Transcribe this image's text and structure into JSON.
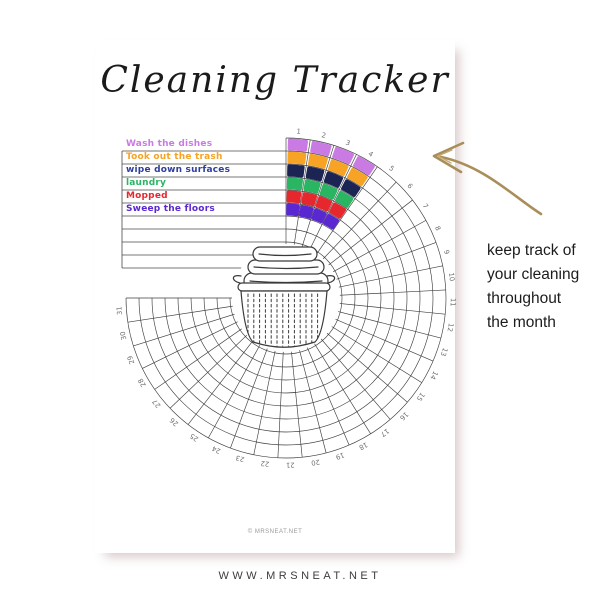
{
  "page": {
    "title": "Cleaning Tracker",
    "copyright": "© MRSNEAT.NET"
  },
  "caption": {
    "text": "keep track of\nyour cleaning\nthroughout\nthe month"
  },
  "footer": {
    "text": "WWW.MRSNEAT.NET"
  },
  "table": {
    "rows_total": 10,
    "tasks": [
      {
        "label": "Wash the dishes",
        "text_color": "#c97be3"
      },
      {
        "label": "Took out the trash",
        "text_color": "#f7a325"
      },
      {
        "label": "wipe down surfaces",
        "text_color": "#2f3e9e"
      },
      {
        "label": "laundry",
        "text_color": "#2ab563"
      },
      {
        "label": "Mopped",
        "text_color": "#e6282e"
      },
      {
        "label": "Sweep the floors",
        "text_color": "#5a28d1"
      }
    ]
  },
  "chart_data": {
    "type": "radial-tracker",
    "title": "Cleaning Tracker monthly radial grid",
    "days": 31,
    "day_labels": [
      1,
      2,
      3,
      4,
      5,
      6,
      7,
      8,
      9,
      10,
      11,
      12,
      13,
      14,
      15,
      16,
      17,
      18,
      19,
      20,
      21,
      22,
      23,
      24,
      25,
      26,
      27,
      28,
      29,
      30,
      31
    ],
    "rings_total": 10,
    "sweep_deg": 270,
    "start": "12-oclock",
    "direction": "clockwise",
    "grid_color": "#3f3f3f",
    "label_color": "#6e6e6e",
    "series": [
      {
        "name": "Wash the dishes",
        "color": "#c97be3",
        "filled_days": [
          1,
          2,
          3,
          4
        ]
      },
      {
        "name": "Took out the trash",
        "color": "#f7a325",
        "filled_days": [
          1,
          2,
          3,
          4
        ]
      },
      {
        "name": "wipe down surfaces",
        "color": "#1c2454",
        "filled_days": [
          1,
          2,
          3,
          4
        ]
      },
      {
        "name": "laundry",
        "color": "#2ab563",
        "filled_days": [
          1,
          2,
          3,
          4
        ]
      },
      {
        "name": "Mopped",
        "color": "#e6282e",
        "filled_days": [
          1,
          2,
          3,
          4
        ]
      },
      {
        "name": "Sweep the floors",
        "color": "#5a28d1",
        "filled_days": [
          1,
          2,
          3,
          4
        ]
      }
    ]
  },
  "arrow": {
    "color": "#a98e59"
  }
}
